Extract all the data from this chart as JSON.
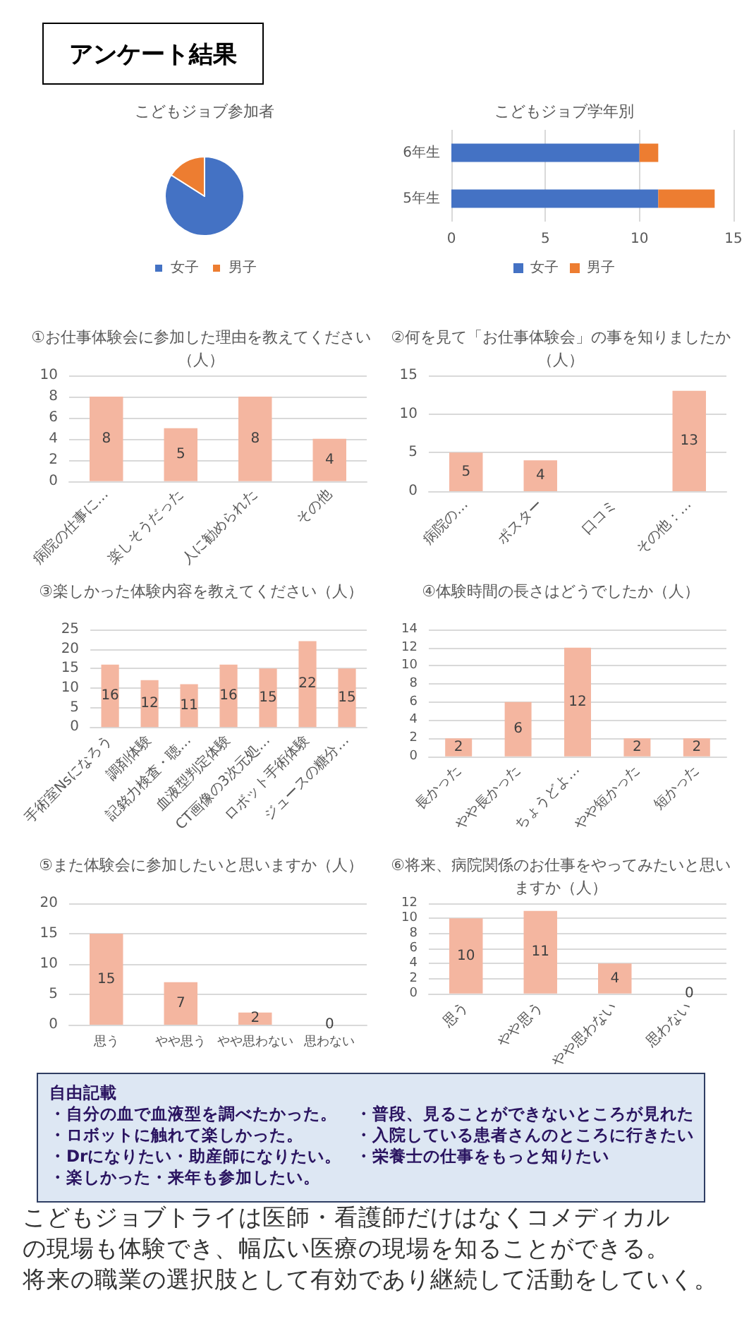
{
  "chart_data": [
    {
      "type": "other",
      "title": "アンケート結果"
    },
    {
      "type": "pie",
      "title": "こどもジョブ参加者",
      "categories": [
        "女子",
        "男子"
      ],
      "values": [
        84,
        16
      ],
      "colors": [
        "#4472c4",
        "#ed7d31"
      ],
      "legend": "bottom"
    },
    {
      "type": "bar",
      "title": "こどもジョブ学年別",
      "orientation": "horizontal",
      "stacked": true,
      "categories": [
        "6年生",
        "5年生"
      ],
      "series": [
        {
          "name": "女子",
          "color": "#4472c4",
          "values": [
            10,
            11
          ]
        },
        {
          "name": "男子",
          "color": "#ed7d31",
          "values": [
            1,
            3
          ]
        }
      ],
      "xlim": [
        0,
        15
      ],
      "xticks": [
        0,
        5,
        10,
        15
      ],
      "grid": "x",
      "legend": "bottom"
    },
    {
      "type": "bar",
      "title": "①お仕事体験会に参加した理由を教えてください（人）",
      "categories": [
        "病院の仕事に…",
        "楽しそうだった",
        "人に勧められた",
        "その他"
      ],
      "values": [
        8,
        5,
        8,
        4
      ],
      "color": "#f4b6a0",
      "ylim": [
        0,
        10
      ],
      "yticks": [
        0,
        2,
        4,
        6,
        8,
        10
      ],
      "grid": "y",
      "data_labels": true
    },
    {
      "type": "bar",
      "title": "②何を見て「お仕事体験会」の事を知りましたか（人）",
      "categories": [
        "病院の…",
        "ポスター",
        "口コミ",
        "その他：…"
      ],
      "values": [
        5,
        4,
        null,
        13
      ],
      "color": "#f4b6a0",
      "ylim": [
        0,
        15
      ],
      "yticks": [
        0,
        5,
        10,
        15
      ],
      "grid": "y",
      "data_labels": true
    },
    {
      "type": "bar",
      "title": "③楽しかった体験内容を教えてください（人）",
      "categories": [
        "手術室Nsになろう",
        "調剤体験",
        "記銘力検査・聴…",
        "血液型判定体験",
        "CT画像の3次元処…",
        "ロボット手術体験",
        "ジュースの糖分…"
      ],
      "values": [
        16,
        12,
        11,
        16,
        15,
        22,
        15
      ],
      "color": "#f4b6a0",
      "ylim": [
        0,
        25
      ],
      "yticks": [
        0,
        5,
        10,
        15,
        20,
        25
      ],
      "grid": "y",
      "data_labels": true
    },
    {
      "type": "bar",
      "title": "④体験時間の長さはどうでしたか（人）",
      "categories": [
        "長かった",
        "やや長かった",
        "ちょうどよ…",
        "やや短かった",
        "短かった"
      ],
      "values": [
        2,
        6,
        12,
        2,
        2
      ],
      "color": "#f4b6a0",
      "ylim": [
        0,
        14
      ],
      "yticks": [
        0,
        2,
        4,
        6,
        8,
        10,
        12,
        14
      ],
      "grid": "y",
      "data_labels": true
    },
    {
      "type": "bar",
      "title": "⑤また体験会に参加したいと思いますか（人）",
      "categories": [
        "思う",
        "やや思う",
        "やや思わない",
        "思わない"
      ],
      "values": [
        15,
        7,
        2,
        0
      ],
      "color": "#f4b6a0",
      "ylim": [
        0,
        20
      ],
      "yticks": [
        0,
        5,
        10,
        15,
        20
      ],
      "grid": "y",
      "data_labels": true
    },
    {
      "type": "bar",
      "title": "⑥将来、病院関係のお仕事をやってみたいと思いますか（人）",
      "categories": [
        "思う",
        "やや思う",
        "やや思わない",
        "思わない"
      ],
      "values": [
        10,
        11,
        4,
        0
      ],
      "color": "#f4b6a0",
      "ylim": [
        0,
        12
      ],
      "yticks": [
        0,
        2,
        4,
        6,
        8,
        10,
        12
      ],
      "grid": "y",
      "data_labels": true
    },
    {
      "type": "other",
      "title": "自由記載",
      "annotations": [
        "・自分の血で血液型を調べたかった。",
        "・普段、見ることができないところが見れた",
        "・ロボットに触れて楽しかった。",
        "・入院している患者さんのところに行きたい",
        "・Drになりたい・助産師になりたい。",
        "・栄養士の仕事をもっと知りたい",
        "・楽しかった・来年も参加したい。"
      ]
    },
    {
      "type": "other",
      "annotations": [
        "こどもジョブトライは医師・看護師だけはなくコメディカル",
        "の現場も体験でき、幅広い医療の現場を知ることができる。",
        "将来の職業の選択肢として有効であり継続して活動をしていく。"
      ]
    }
  ]
}
